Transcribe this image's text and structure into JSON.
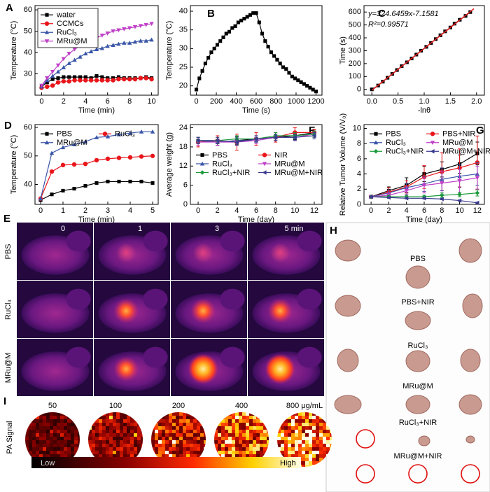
{
  "chart_data": [
    {
      "type": "line",
      "panel": "A",
      "x_label": "Time (min)",
      "y_label": "Temperature (°C)",
      "x": [
        0,
        0.5,
        1,
        1.5,
        2,
        2.5,
        3,
        3.5,
        4,
        4.5,
        5,
        5.5,
        6,
        6.5,
        7,
        7.5,
        8,
        8.5,
        9,
        9.5,
        10
      ],
      "xlim": [
        -0.6,
        10.6
      ],
      "xticks": [
        0,
        2,
        4,
        6,
        8,
        10
      ],
      "ylim": [
        20,
        62
      ],
      "yticks": [
        30,
        40,
        50,
        60
      ],
      "legend": "upper left",
      "legend_columns": 1,
      "legend_frame": true,
      "series": [
        {
          "name": "water",
          "color": "#000000",
          "marker": "square",
          "values": [
            24,
            26,
            27.5,
            28,
            28.5,
            28.5,
            28.5,
            28.5,
            28.5,
            28,
            29,
            28.5,
            28,
            28,
            28.5,
            28,
            28,
            28,
            28,
            28.5,
            28
          ]
        },
        {
          "name": "CCMCs",
          "color": "#e8161b",
          "marker": "circle",
          "values": [
            23.5,
            24,
            24.5,
            26,
            26.5,
            26.5,
            27,
            27,
            27,
            27,
            27,
            27,
            27,
            27,
            27.5,
            27.5,
            27.5,
            27.5,
            28,
            28,
            27.5
          ]
        },
        {
          "name": "RuCl₃",
          "color": "#3a56a8",
          "marker": "triangle",
          "values": [
            24,
            27,
            29,
            31,
            33,
            35,
            36.5,
            38,
            39.5,
            40.5,
            41.5,
            42,
            43,
            43.5,
            44,
            44.5,
            44.5,
            45,
            45.5,
            45.5,
            46
          ]
        },
        {
          "name": "MRu@M",
          "color": "#c040c8",
          "marker": "down-triangle",
          "values": [
            24.5,
            28,
            31,
            34,
            37,
            39.5,
            41.5,
            43,
            44.5,
            46,
            47,
            48,
            49,
            50,
            50.5,
            51,
            51.5,
            52,
            52.5,
            53,
            53.5
          ]
        }
      ]
    },
    {
      "type": "line",
      "panel": "B",
      "x_label": "Time (s)",
      "y_label": "Temperature (°C)",
      "x": [
        0,
        30,
        60,
        90,
        120,
        150,
        180,
        210,
        240,
        270,
        300,
        330,
        360,
        390,
        420,
        450,
        480,
        510,
        540,
        570,
        600,
        630,
        660,
        690,
        720,
        750,
        780,
        810,
        840,
        870,
        900,
        930,
        960,
        990,
        1020,
        1050,
        1080,
        1110,
        1140,
        1170,
        1200
      ],
      "xlim": [
        -60,
        1260
      ],
      "xticks": [
        0,
        200,
        400,
        600,
        800,
        1000,
        1200
      ],
      "ylim": [
        17.5,
        41.5
      ],
      "yticks": [
        20,
        25,
        30,
        35,
        40
      ],
      "series": [
        {
          "color": "#000000",
          "marker": "square",
          "values": [
            19,
            22,
            24,
            26,
            27.5,
            29,
            30,
            31,
            32,
            33,
            34,
            34.5,
            35.5,
            36,
            37,
            37.5,
            38,
            38.5,
            39,
            39.5,
            39.5,
            37,
            34,
            32,
            30.5,
            29,
            28,
            27,
            26,
            25,
            24.5,
            23.5,
            22.5,
            22,
            21.5,
            21,
            20.5,
            20,
            19.5,
            19,
            18.5
          ]
        }
      ]
    },
    {
      "type": "scatter",
      "panel": "C",
      "x_label": "-lnθ",
      "y_label": "Time (s)",
      "x": [
        0,
        0.12,
        0.21,
        0.3,
        0.39,
        0.48,
        0.57,
        0.67,
        0.76,
        0.85,
        0.94,
        1.04,
        1.13,
        1.22,
        1.31,
        1.4,
        1.5,
        1.58,
        1.68,
        1.79,
        1.88
      ],
      "xlim": [
        -0.15,
        2.15
      ],
      "xticks": [
        {
          "value": 0,
          "label": "0.0"
        },
        {
          "value": 0.5,
          "label": "0.5"
        },
        {
          "value": 1,
          "label": "1.0"
        },
        {
          "value": 1.5,
          "label": "1.5"
        },
        {
          "value": 2,
          "label": "2.0"
        }
      ],
      "ylim": [
        -45,
        650
      ],
      "yticks": [
        0,
        100,
        200,
        300,
        400,
        500,
        600
      ],
      "annotations": [
        "y=324.6459x-7.1581",
        "R²=0.99571"
      ],
      "fit": {
        "color": "#e02020",
        "slope": 324.6459,
        "intercept": -7.1581
      },
      "series": [
        {
          "color": "#000000",
          "marker": "square",
          "values": [
            0,
            30,
            60,
            90,
            120,
            150,
            180,
            210,
            240,
            270,
            300,
            330,
            360,
            390,
            420,
            450,
            480,
            510,
            540,
            570,
            600
          ]
        }
      ]
    },
    {
      "type": "line",
      "panel": "D",
      "x_label": "Time (min)",
      "y_label": "Temperature (°C)",
      "x": [
        0,
        0.5,
        1,
        1.5,
        2,
        2.5,
        3,
        3.5,
        4,
        4.5,
        5
      ],
      "xlim": [
        -0.25,
        5.25
      ],
      "xticks": [
        0,
        1,
        2,
        3,
        4,
        5
      ],
      "ylim": [
        33,
        61
      ],
      "yticks": [
        40,
        50,
        60
      ],
      "legend": "upper left",
      "legend_columns": 2,
      "series": [
        {
          "name": "PBS",
          "color": "#000000",
          "marker": "square",
          "values": [
            34.5,
            36.5,
            37.8,
            38.5,
            39.5,
            40.5,
            41,
            41,
            41,
            41,
            40.5
          ]
        },
        {
          "name": "RuCl₃",
          "color": "#e8161b",
          "marker": "circle",
          "values": [
            35,
            44.5,
            46.8,
            47,
            47.2,
            48.5,
            49,
            49.3,
            49.5,
            49.8,
            50
          ]
        },
        {
          "name": "MRu@M",
          "color": "#3a56a8",
          "marker": "triangle",
          "values": [
            35,
            51,
            53,
            54,
            55,
            56.5,
            56.8,
            57.5,
            58,
            58.5,
            58.5
          ]
        }
      ]
    },
    {
      "type": "line",
      "panel": "F",
      "x_label": "Time (day)",
      "y_label": "Average weight (g)",
      "x": [
        0,
        2,
        4,
        6,
        8,
        10,
        12
      ],
      "xlim": [
        -0.8,
        12.8
      ],
      "xticks": [
        0,
        2,
        4,
        6,
        8,
        10,
        12
      ],
      "ylim": [
        0,
        25
      ],
      "yticks": [
        0,
        6,
        12,
        18,
        24
      ],
      "legend": "center left",
      "legend_columns": 2,
      "series": [
        {
          "name": "PBS",
          "color": "#000000",
          "marker": "square",
          "values": [
            20,
            19.5,
            20,
            20.5,
            21,
            21.5,
            22.5
          ],
          "errors": [
            1,
            1,
            1.2,
            1,
            1,
            1.2,
            1
          ]
        },
        {
          "name": "NIR",
          "color": "#e8161b",
          "marker": "circle",
          "values": [
            19.5,
            20,
            19.5,
            20.5,
            21,
            22.5,
            22.5
          ],
          "errors": [
            1.5,
            1.5,
            2.5,
            2,
            1.5,
            1.5,
            1
          ]
        },
        {
          "name": "RuCl₃",
          "color": "#3a56a8",
          "marker": "triangle",
          "values": [
            20,
            19.5,
            20,
            20,
            21,
            21,
            22
          ],
          "errors": [
            1,
            1,
            1,
            1,
            1,
            1,
            1
          ]
        },
        {
          "name": "MRu@M",
          "color": "#c040c8",
          "marker": "down-triangle",
          "values": [
            19.5,
            19.5,
            19.5,
            20,
            21,
            21,
            22
          ],
          "errors": [
            1,
            1,
            1,
            1,
            1,
            1,
            1
          ]
        },
        {
          "name": "RuCl₃+NIR",
          "color": "#1a9a3a",
          "marker": "diamond",
          "values": [
            20,
            20,
            20.5,
            20.5,
            21.5,
            21.5,
            22
          ],
          "errors": [
            1,
            1,
            1,
            1,
            1,
            1,
            1
          ]
        },
        {
          "name": "MRu@M+NIR",
          "color": "#3a3a90",
          "marker": "left-triangle",
          "values": [
            20,
            20,
            19.5,
            20.5,
            21,
            21,
            21.5
          ],
          "errors": [
            1,
            1,
            1,
            1,
            1,
            1,
            1
          ]
        }
      ]
    },
    {
      "type": "line",
      "panel": "G",
      "x_label": "Time (day)",
      "y_label": "Relative Tumor Volume (V/V₀)",
      "x": [
        0,
        2,
        4,
        6,
        8,
        10,
        12
      ],
      "xlim": [
        -0.8,
        12.8
      ],
      "xticks": [
        0,
        2,
        4,
        6,
        8,
        10,
        12
      ],
      "ylim": [
        0,
        10.5
      ],
      "yticks": [
        0,
        2,
        4,
        6,
        8,
        10
      ],
      "legend": "upper left",
      "legend_columns": 2,
      "series": [
        {
          "name": "PBS",
          "color": "#000000",
          "marker": "square",
          "values": [
            1,
            1.8,
            2.5,
            4,
            4.6,
            5.3,
            6.7
          ],
          "errors": [
            0.2,
            0.5,
            1,
            1,
            1,
            1.2,
            1.5
          ]
        },
        {
          "name": "PBS+NIR",
          "color": "#e8161b",
          "marker": "circle",
          "values": [
            1,
            1.6,
            2.3,
            3.6,
            4.3,
            4.8,
            5.5
          ],
          "errors": [
            0.2,
            0.6,
            0.8,
            1.5,
            2.5,
            2.5,
            3.5
          ]
        },
        {
          "name": "RuCl₃",
          "color": "#3a56a8",
          "marker": "triangle",
          "values": [
            1,
            1.5,
            2.2,
            2.7,
            3.3,
            3.7,
            4
          ],
          "errors": [
            0.2,
            0.4,
            0.6,
            1,
            1.5,
            1.5,
            1.5
          ]
        },
        {
          "name": "MRu@M",
          "color": "#c040c8",
          "marker": "down-triangle",
          "values": [
            1,
            1.2,
            1.8,
            2.5,
            2.8,
            3.1,
            3.5
          ],
          "errors": [
            0.2,
            0.3,
            0.5,
            1,
            1.5,
            1.5,
            1.5
          ]
        },
        {
          "name": "RuCl₃+NIR",
          "color": "#1a9a3a",
          "marker": "diamond",
          "values": [
            1,
            1,
            1,
            1,
            1.2,
            1.3,
            1.5
          ],
          "errors": [
            0.1,
            0.2,
            0.2,
            0.2,
            0.3,
            0.3,
            0.4
          ]
        },
        {
          "name": "MRu@M+NIR",
          "color": "#3a3a90",
          "marker": "left-triangle",
          "values": [
            1,
            0.9,
            0.8,
            0.8,
            0.7,
            0.5,
            0.2
          ],
          "errors": [
            0.1,
            0.1,
            0.1,
            0.1,
            0.1,
            0.1,
            0.1
          ]
        }
      ]
    }
  ],
  "thermal_images": {
    "panel": "E",
    "columns": [
      "0",
      "1",
      "3",
      "5 min"
    ],
    "rows": [
      "PBS",
      "RuCl₃",
      "MRu@M"
    ]
  },
  "tumor_photos": {
    "panel": "H",
    "groups": [
      "PBS",
      "PBS+NIR",
      "RuCl₃",
      "MRu@M",
      "RuCl₃+NIR",
      "MRu@M+NIR"
    ]
  },
  "pa_imaging": {
    "panel": "I",
    "y_label": "PA Signal",
    "concentrations": [
      "50",
      "100",
      "200",
      "400",
      "800 μg/mL"
    ],
    "colorbar_low": "Low",
    "colorbar_high": "High"
  }
}
